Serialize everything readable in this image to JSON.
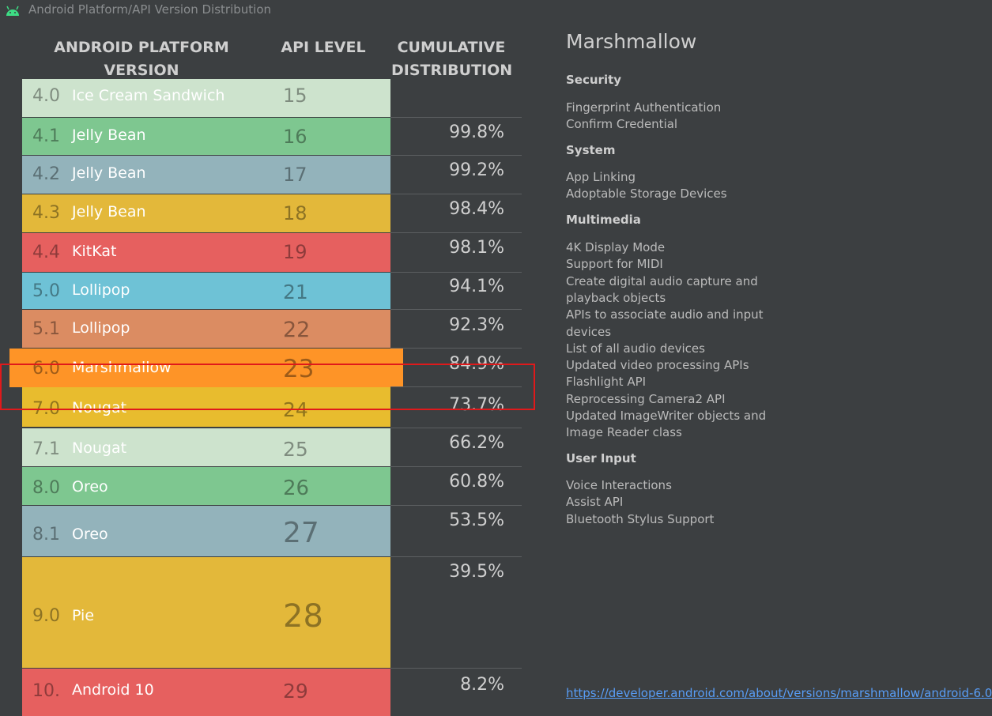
{
  "window": {
    "title": "Android Platform/API Version Distribution",
    "icon": "android-icon"
  },
  "table": {
    "headers": {
      "version": "ANDROID PLATFORM VERSION",
      "api": "API LEVEL",
      "distribution": "CUMULATIVE DISTRIBUTION"
    },
    "rows": [
      {
        "version": "4.0",
        "name": "Ice Cream Sandwich",
        "api": "15",
        "distribution": "",
        "color": "#cde3cd"
      },
      {
        "version": "4.1",
        "name": "Jelly Bean",
        "api": "16",
        "distribution": "99.8%",
        "color": "#7ec790"
      },
      {
        "version": "4.2",
        "name": "Jelly Bean",
        "api": "17",
        "distribution": "99.2%",
        "color": "#93b3bb"
      },
      {
        "version": "4.3",
        "name": "Jelly Bean",
        "api": "18",
        "distribution": "98.4%",
        "color": "#e3b83a"
      },
      {
        "version": "4.4",
        "name": "KitKat",
        "api": "19",
        "distribution": "98.1%",
        "color": "#e6605f"
      },
      {
        "version": "5.0",
        "name": "Lollipop",
        "api": "21",
        "distribution": "94.1%",
        "color": "#6ec2d6"
      },
      {
        "version": "5.1",
        "name": "Lollipop",
        "api": "22",
        "distribution": "92.3%",
        "color": "#db8c62"
      },
      {
        "version": "6.0",
        "name": "Marshmallow",
        "api": "23",
        "distribution": "84.9%",
        "color": "#fe9427",
        "selected": true
      },
      {
        "version": "7.0",
        "name": "Nougat",
        "api": "24",
        "distribution": "73.7%",
        "color": "#e8bc2e"
      },
      {
        "version": "7.1",
        "name": "Nougat",
        "api": "25",
        "distribution": "66.2%",
        "color": "#cde3cd"
      },
      {
        "version": "8.0",
        "name": "Oreo",
        "api": "26",
        "distribution": "60.8%",
        "color": "#7ec790"
      },
      {
        "version": "8.1",
        "name": "Oreo",
        "api": "27",
        "distribution": "53.5%",
        "color": "#93b3bb"
      },
      {
        "version": "9.0",
        "name": "Pie",
        "api": "28",
        "distribution": "39.5%",
        "color": "#e3b83a"
      },
      {
        "version": "10.",
        "name": "Android 10",
        "api": "29",
        "distribution": "8.2%",
        "color": "#e6605f"
      }
    ]
  },
  "details": {
    "heading": "Marshmallow",
    "sections": [
      {
        "title": "Security",
        "items": [
          "Fingerprint Authentication",
          "Confirm Credential"
        ]
      },
      {
        "title": "System",
        "items": [
          "App Linking",
          "Adoptable Storage Devices"
        ]
      },
      {
        "title": "Multimedia",
        "items": [
          "4K Display Mode",
          "Support for MIDI",
          "Create digital audio capture and",
          "playback objects",
          "APIs to associate audio and input",
          "devices",
          "List of all audio devices",
          "Updated video processing APIs",
          "Flashlight API",
          "Reprocessing Camera2 API",
          "Updated ImageWriter objects and",
          "Image Reader class"
        ]
      },
      {
        "title": "User Input",
        "items": [
          "Voice Interactions",
          "Assist API",
          "Bluetooth Stylus Support"
        ]
      }
    ],
    "link": "https://developer.android.com/about/versions/marshmallow/android-6.0"
  }
}
